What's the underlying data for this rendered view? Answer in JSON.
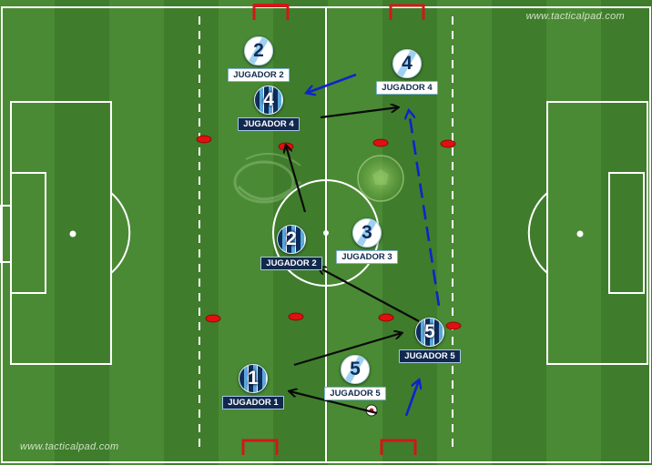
{
  "watermarks": {
    "top": "www.tacticalpad.com",
    "bottom": "www.tacticalpad.com"
  },
  "players": {
    "dark": [
      {
        "number": "4",
        "label": "JUGADOR 4"
      },
      {
        "number": "2",
        "label": "JUGADOR 2"
      },
      {
        "number": "1",
        "label": "JUGADOR 1"
      },
      {
        "number": "5",
        "label": "JUGADOR 5"
      }
    ],
    "light": [
      {
        "number": "2",
        "label": "JUGADOR 2"
      },
      {
        "number": "4",
        "label": "JUGADOR 4"
      },
      {
        "number": "3",
        "label": "JUGADOR 3"
      },
      {
        "number": "5",
        "label": "JUGADOR 5"
      }
    ]
  },
  "colors": {
    "pass_arrow": "#0a0a0a",
    "run_arrow": "#1122cc",
    "cone": "#e01010",
    "goal": "#d01818",
    "team_dark": "#12294f",
    "team_light": "#ffffff"
  }
}
